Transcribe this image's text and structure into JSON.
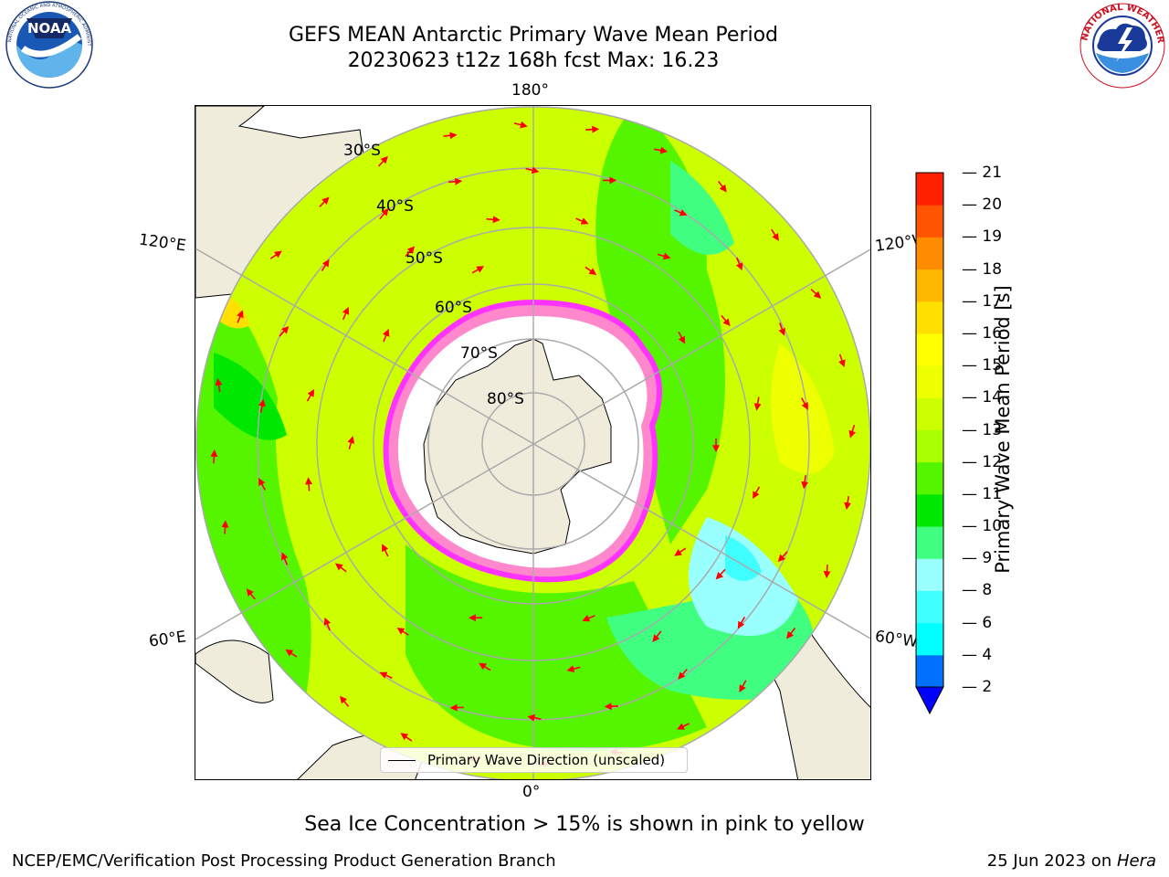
{
  "header": {
    "title_line1": "GEFS MEAN Antarctic Primary Wave Mean Period",
    "title_line2": "20230623 t12z 168h fcst   Max: 16.23"
  },
  "logos": {
    "left": {
      "name": "NOAA",
      "text": "NOAA",
      "ring_text": "NATIONAL OCEANIC AND ATMOSPHERIC ADMINISTRATION · U.S. DEPARTMENT OF COMMERCE"
    },
    "right": {
      "name": "National Weather Service",
      "ring_text": "NATIONAL WEATHER SERVICE"
    }
  },
  "map": {
    "projection": "south polar stereographic",
    "longitude_labels": {
      "top": "180°",
      "bottom": "0°",
      "upper_left": "120°E",
      "upper_right": "120°W",
      "lower_left": "60°E",
      "lower_right": "60°W"
    },
    "latitude_labels": [
      "30°S",
      "40°S",
      "50°S",
      "60°S",
      "70°S",
      "80°S"
    ],
    "legend_text": "Primary Wave Direction (unscaled)",
    "land_color": "#efecdc",
    "ice_color": "#ffffff",
    "ice_edge_colors": [
      "#ff33ff",
      "#ff88cc",
      "#ffaa33"
    ],
    "arrow_color": "#ff0000"
  },
  "colorbar": {
    "label": "Primary Wave Mean Period [s]",
    "ticks": [
      "21",
      "20",
      "19",
      "18",
      "17",
      "16",
      "15",
      "14",
      "13",
      "12",
      "11",
      "10",
      "9",
      "8",
      "6",
      "4",
      "2"
    ],
    "boundaries": [
      2,
      4,
      6,
      8,
      9,
      10,
      11,
      12,
      13,
      14,
      15,
      16,
      17,
      18,
      19,
      20,
      21
    ],
    "colors": [
      "#0070ff",
      "#00ffff",
      "#40ffff",
      "#99ffff",
      "#40ff80",
      "#00e800",
      "#55f500",
      "#aaff00",
      "#ccff00",
      "#eeff00",
      "#ffff00",
      "#ffe000",
      "#ffb800",
      "#ff8c00",
      "#ff5500",
      "#ff2000"
    ],
    "under_color": "#0000ff"
  },
  "footnote": "Sea Ice Concentration > 15% is shown in pink to yellow",
  "credits": {
    "left": "NCEP/EMC/Verification Post Processing Product Generation Branch",
    "right_prefix": "25 Jun 2023 on ",
    "right_host": "Hera"
  }
}
